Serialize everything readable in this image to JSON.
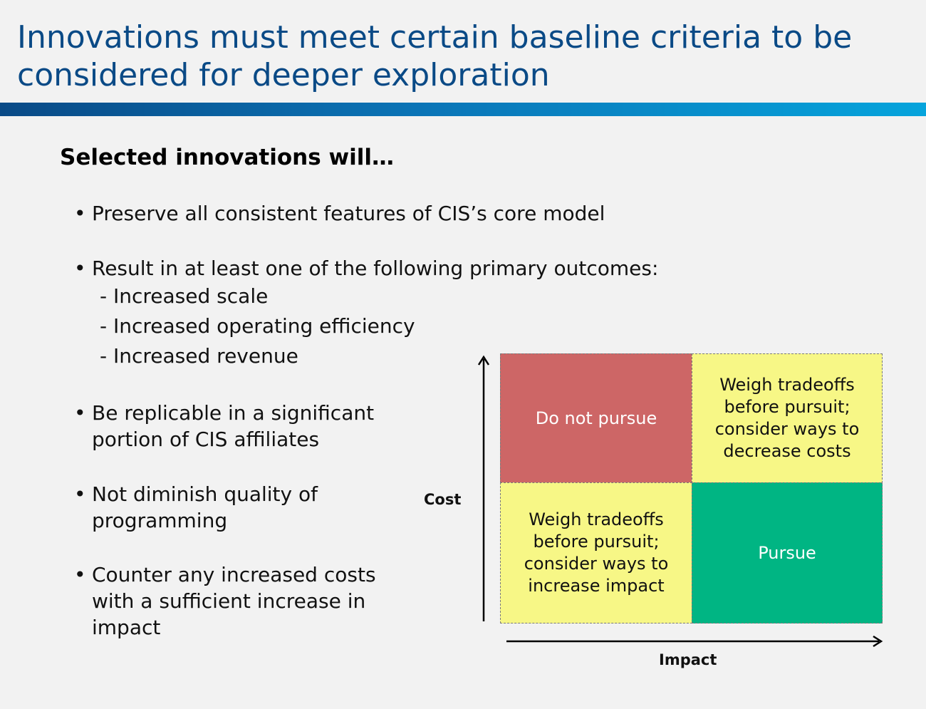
{
  "header": {
    "title": "Innovations must meet certain baseline criteria to be considered for deeper exploration"
  },
  "subtitle": "Selected innovations will…",
  "bullets": [
    {
      "text": "Preserve all consistent features of CIS’s core model"
    },
    {
      "text": "Result in at least one of the following primary outcomes:",
      "subitems": [
        "- Increased scale",
        "- Increased operating efficiency",
        "- Increased revenue"
      ]
    },
    {
      "text": "Be replicable in a significant portion of CIS affiliates"
    },
    {
      "text": "Not diminish quality of programming"
    },
    {
      "text": "Counter any increased costs with a sufficient increase in impact"
    }
  ],
  "bullet_glyph": "•",
  "matrix": {
    "y_axis_label": "Cost",
    "x_axis_label": "Impact",
    "cells": {
      "high_cost_low_impact": "Do not pursue",
      "high_cost_high_impact": "Weigh tradeoffs before pursuit; consider ways to decrease costs",
      "low_cost_low_impact": "Weigh tradeoffs before pursuit; consider ways to increase impact",
      "low_cost_high_impact": "Pursue"
    },
    "colors": {
      "red": "#cd6666",
      "yellow": "#f7f786",
      "green": "#00b583"
    }
  },
  "colors": {
    "title": "#0a4a86",
    "bar_start": "#0a4a86",
    "bar_end": "#06a4dc"
  }
}
